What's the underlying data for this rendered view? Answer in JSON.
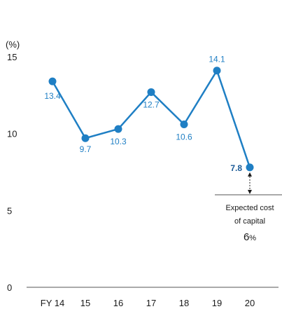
{
  "chart_data": {
    "type": "line",
    "ylabel": "(%)",
    "ylim": [
      0,
      15
    ],
    "yticks": [
      "0",
      "5",
      "10",
      "15"
    ],
    "categories": [
      "FY 14",
      "15",
      "16",
      "17",
      "18",
      "19",
      "20"
    ],
    "series": [
      {
        "values": [
          13.4,
          9.7,
          10.3,
          12.7,
          10.6,
          14.1,
          7.8
        ],
        "labels": [
          "13.4",
          "9.7",
          "10.3",
          "12.7",
          "10.6",
          "14.1",
          "7.8"
        ],
        "color": "#1f7fc4"
      }
    ],
    "annotation": {
      "line1": "Expected cost",
      "line2": "of capital",
      "value": "6",
      "unit": "%",
      "reference_value": 6
    }
  }
}
